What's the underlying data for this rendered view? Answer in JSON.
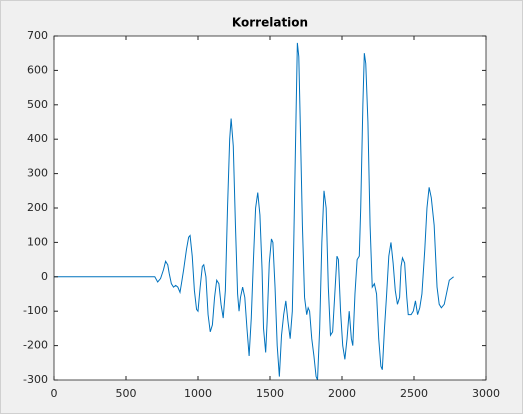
{
  "chart_data": {
    "type": "line",
    "title": "Korrelation",
    "color": "#0072bd",
    "x": [
      0,
      700,
      720,
      740,
      760,
      775,
      790,
      800,
      815,
      830,
      845,
      860,
      875,
      885,
      900,
      920,
      935,
      945,
      960,
      975,
      990,
      1000,
      1015,
      1030,
      1040,
      1055,
      1070,
      1085,
      1100,
      1115,
      1130,
      1145,
      1160,
      1175,
      1190,
      1205,
      1220,
      1230,
      1245,
      1260,
      1275,
      1285,
      1295,
      1310,
      1325,
      1340,
      1355,
      1370,
      1385,
      1400,
      1415,
      1430,
      1445,
      1455,
      1470,
      1480,
      1495,
      1510,
      1520,
      1535,
      1550,
      1565,
      1580,
      1595,
      1610,
      1625,
      1640,
      1655,
      1665,
      1680,
      1690,
      1700,
      1710,
      1725,
      1740,
      1755,
      1765,
      1775,
      1790,
      1805,
      1820,
      1830,
      1845,
      1860,
      1875,
      1890,
      1905,
      1920,
      1935,
      1950,
      1965,
      1975,
      1990,
      2005,
      2020,
      2035,
      2050,
      2065,
      2075,
      2090,
      2105,
      2120,
      2130,
      2145,
      2155,
      2165,
      2180,
      2195,
      2210,
      2225,
      2240,
      2255,
      2270,
      2280,
      2295,
      2310,
      2325,
      2340,
      2355,
      2370,
      2385,
      2400,
      2410,
      2420,
      2435,
      2450,
      2460,
      2480,
      2495,
      2510,
      2525,
      2540,
      2555,
      2575,
      2590,
      2605,
      2620,
      2640,
      2660,
      2675,
      2690,
      2710,
      2730,
      2745,
      2760,
      2775
    ],
    "values": [
      0,
      0,
      -15,
      -5,
      20,
      45,
      35,
      10,
      -20,
      -30,
      -25,
      -30,
      -45,
      -20,
      20,
      80,
      115,
      120,
      60,
      -40,
      -95,
      -100,
      -30,
      30,
      35,
      0,
      -110,
      -160,
      -140,
      -60,
      -10,
      -20,
      -80,
      -120,
      -40,
      200,
      400,
      460,
      380,
      150,
      -50,
      -100,
      -60,
      -30,
      -60,
      -150,
      -230,
      -120,
      50,
      200,
      245,
      180,
      20,
      -150,
      -220,
      -130,
      40,
      110,
      100,
      -30,
      -200,
      -290,
      -170,
      -110,
      -70,
      -130,
      -180,
      -100,
      100,
      450,
      680,
      640,
      450,
      150,
      -60,
      -110,
      -90,
      -100,
      -180,
      -230,
      -290,
      -300,
      -150,
      100,
      250,
      200,
      -30,
      -170,
      -160,
      -50,
      60,
      50,
      -100,
      -200,
      -240,
      -180,
      -100,
      -180,
      -200,
      -50,
      50,
      60,
      200,
      500,
      650,
      620,
      450,
      150,
      -30,
      -20,
      -50,
      -180,
      -260,
      -270,
      -150,
      -50,
      60,
      100,
      40,
      -40,
      -80,
      -60,
      30,
      55,
      40,
      -60,
      -110,
      -110,
      -100,
      -70,
      -110,
      -90,
      -50,
      80,
      200,
      260,
      230,
      150,
      -30,
      -80,
      -90,
      -80,
      -40,
      -10,
      -5,
      0
    ],
    "xlim": [
      0,
      3000
    ],
    "xticks": [
      0,
      500,
      1000,
      1500,
      2000,
      2500,
      3000
    ],
    "ylim": [
      -300,
      700
    ],
    "yticks": [
      -300,
      -200,
      -100,
      0,
      100,
      200,
      300,
      400,
      500,
      600,
      700
    ]
  }
}
